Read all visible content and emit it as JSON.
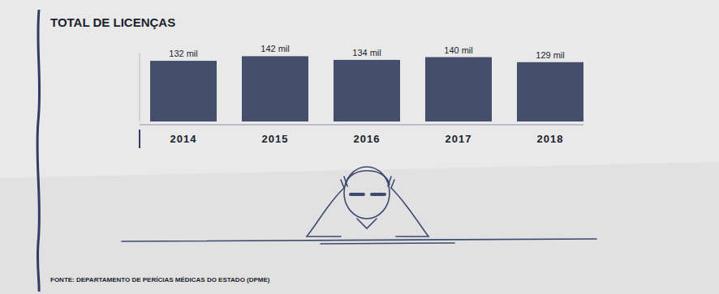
{
  "chart_data": {
    "type": "bar",
    "title": "TOTAL DE LICENÇAS",
    "categories": [
      "2014",
      "2015",
      "2016",
      "2017",
      "2018"
    ],
    "values": [
      132,
      142,
      134,
      140,
      129
    ],
    "value_labels": [
      "132 mil",
      "142 mil",
      "134 mil",
      "140 mil",
      "129 mil"
    ],
    "color": "#454f6b",
    "ylim": [
      0,
      150
    ],
    "data_labels": true,
    "tick_labels": "x",
    "grid": false,
    "source": "FONTE: DEPARTAMENTO DE PERÍCIAS MÉDICAS DO ESTADO (DPME)"
  }
}
